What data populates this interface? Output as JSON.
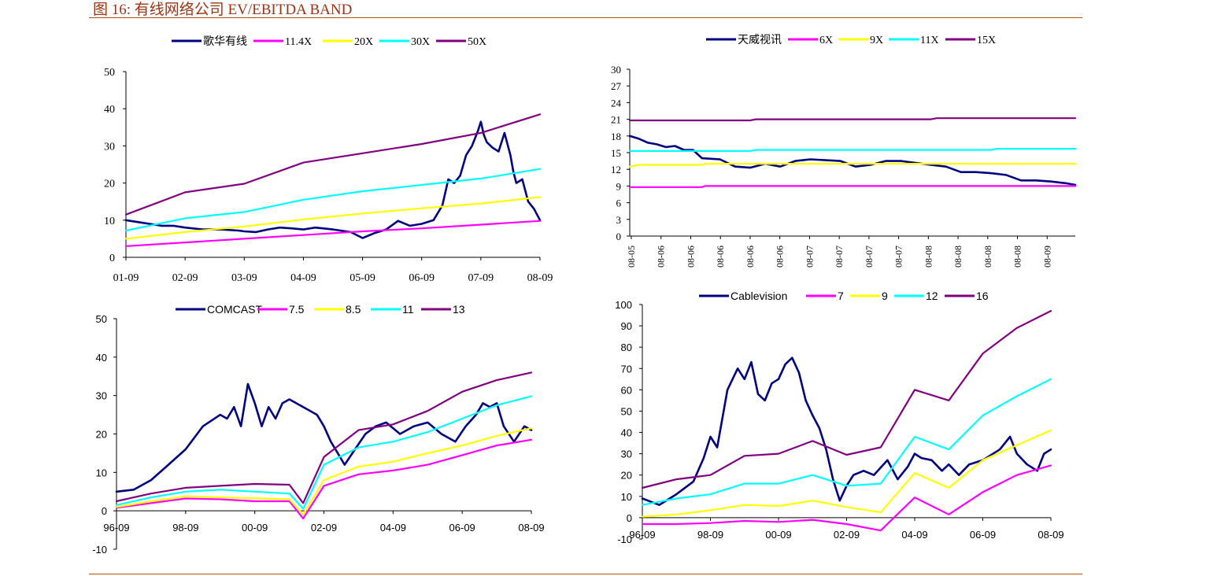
{
  "figure": {
    "title": "图 16:  有线网络公司 EV/EBITDA BAND"
  },
  "colors": {
    "navy": "#000080",
    "magenta": "#ff00ff",
    "yellow": "#ffff00",
    "cyan": "#00ffff",
    "purple": "#800080",
    "rule": "#b45309",
    "title": "#9a3412"
  },
  "chart_data": [
    {
      "id": "chart1",
      "type": "line",
      "title": "",
      "font": "serif",
      "legend": "top-center",
      "x_ticks": [
        "01-09",
        "02-09",
        "03-09",
        "04-09",
        "05-09",
        "06-09",
        "07-09",
        "08-09"
      ],
      "x_range": [
        0,
        7
      ],
      "y_ticks": [
        0,
        10,
        20,
        30,
        40,
        50
      ],
      "ylim": [
        0,
        50
      ],
      "series": [
        {
          "name": "歌华有线",
          "color": "navy",
          "x": [
            0,
            0.2,
            0.4,
            0.6,
            0.8,
            1.0,
            1.3,
            1.6,
            1.9,
            2.0,
            2.2,
            2.4,
            2.6,
            2.8,
            3.0,
            3.2,
            3.5,
            3.8,
            4.0,
            4.2,
            4.4,
            4.6,
            4.8,
            5.0,
            5.2,
            5.35,
            5.45,
            5.55,
            5.65,
            5.75,
            5.85,
            5.95,
            6.0,
            6.05,
            6.1,
            6.2,
            6.3,
            6.4,
            6.5,
            6.55,
            6.6,
            6.7,
            6.8,
            6.9,
            7.0
          ],
          "y": [
            10,
            9.5,
            9,
            8.5,
            8.5,
            8,
            7.5,
            7.5,
            7.2,
            7.0,
            6.8,
            7.5,
            8.0,
            7.8,
            7.5,
            8.0,
            7.5,
            6.8,
            5.2,
            6.5,
            7.5,
            9.8,
            8.5,
            9.0,
            10.0,
            14.0,
            21.0,
            20.0,
            22.0,
            27.5,
            30.0,
            34.0,
            36.5,
            33.0,
            31.0,
            29.5,
            28.5,
            33.5,
            27.5,
            23.0,
            20.0,
            21.0,
            15.0,
            13.0,
            10.0
          ]
        },
        {
          "name": "11.4X",
          "color": "magenta",
          "x": [
            0,
            1,
            2,
            3,
            4,
            5,
            6,
            7
          ],
          "y": [
            3.0,
            4.0,
            5.0,
            6.0,
            7.0,
            7.8,
            8.8,
            9.8
          ]
        },
        {
          "name": "20X",
          "color": "yellow",
          "x": [
            0,
            1,
            2,
            3,
            4,
            5,
            6,
            7
          ],
          "y": [
            5.0,
            6.8,
            8.3,
            10.2,
            11.8,
            13.2,
            14.5,
            16.2
          ]
        },
        {
          "name": "30X",
          "color": "cyan",
          "x": [
            0,
            1,
            2,
            3,
            4,
            5,
            6,
            7
          ],
          "y": [
            7.2,
            10.5,
            12.2,
            15.5,
            17.8,
            19.5,
            21.2,
            23.8
          ]
        },
        {
          "name": "50X",
          "color": "purple",
          "x": [
            0,
            1,
            2,
            3,
            4,
            5,
            6,
            7
          ],
          "y": [
            11.5,
            17.5,
            19.8,
            25.5,
            28.0,
            30.5,
            33.5,
            38.5
          ]
        }
      ]
    },
    {
      "id": "chart2",
      "type": "line",
      "title": "",
      "font": "serif",
      "legend": "top-center",
      "x_ticks": [
        "08-05",
        "08-06",
        "08-06",
        "08-06",
        "08-06",
        "08-06",
        "08-07",
        "08-07",
        "08-07",
        "08-07",
        "08-08",
        "08-08",
        "08-08",
        "08-08",
        "08-09"
      ],
      "x_range": [
        0,
        14.8
      ],
      "y_ticks": [
        0,
        3,
        6,
        9,
        12,
        15,
        18,
        21,
        24,
        27,
        30
      ],
      "ylim": [
        0,
        30
      ],
      "series": [
        {
          "name": "天威视讯",
          "color": "navy",
          "x": [
            0,
            0.3,
            0.6,
            0.9,
            1.2,
            1.5,
            1.8,
            2.1,
            2.4,
            3.0,
            3.5,
            4.0,
            4.5,
            5.0,
            5.5,
            6.0,
            7.0,
            7.5,
            8.0,
            8.5,
            9.0,
            10.0,
            10.5,
            11.0,
            11.5,
            12.0,
            12.5,
            13.0,
            13.5,
            14.0,
            14.5,
            14.8
          ],
          "y": [
            18.0,
            17.5,
            16.8,
            16.5,
            16.0,
            16.2,
            15.5,
            15.5,
            14.0,
            13.8,
            12.5,
            12.3,
            13.0,
            12.5,
            13.5,
            13.8,
            13.5,
            12.5,
            12.8,
            13.5,
            13.5,
            12.8,
            12.5,
            11.5,
            11.5,
            11.3,
            11.0,
            10.0,
            10.0,
            9.8,
            9.5,
            9.2
          ]
        },
        {
          "name": "6X",
          "color": "magenta",
          "x": [
            0,
            2.4,
            2.5,
            14.8
          ],
          "y": [
            8.8,
            8.8,
            9.0,
            9.0
          ]
        },
        {
          "name": "9X",
          "color": "yellow",
          "x": [
            0,
            0.3,
            2.4,
            2.5,
            14.8
          ],
          "y": [
            12.5,
            12.8,
            12.8,
            13.0,
            13.0
          ]
        },
        {
          "name": "11X",
          "color": "cyan",
          "x": [
            0,
            4.0,
            4.2,
            12.0,
            12.2,
            14.8
          ],
          "y": [
            15.3,
            15.3,
            15.5,
            15.5,
            15.7,
            15.7
          ]
        },
        {
          "name": "15X",
          "color": "purple",
          "x": [
            0,
            4.0,
            4.2,
            10.0,
            10.2,
            14.8
          ],
          "y": [
            20.8,
            20.8,
            21.0,
            21.0,
            21.2,
            21.2
          ]
        }
      ]
    },
    {
      "id": "chart3",
      "type": "line",
      "title": "",
      "font": "sans",
      "legend": "top-center",
      "x_ticks": [
        "96-09",
        "98-09",
        "00-09",
        "02-09",
        "04-09",
        "06-09",
        "08-09"
      ],
      "x_range": [
        0,
        12
      ],
      "y_ticks": [
        -10,
        0,
        10,
        20,
        30,
        40,
        50
      ],
      "ylim": [
        -10,
        50
      ],
      "series": [
        {
          "name": "COMCAST",
          "color": "navy",
          "x": [
            0,
            0.5,
            1.0,
            1.5,
            2.0,
            2.5,
            3.0,
            3.2,
            3.4,
            3.6,
            3.8,
            4.0,
            4.2,
            4.4,
            4.6,
            4.8,
            5.0,
            5.4,
            5.8,
            6.0,
            6.2,
            6.4,
            6.6,
            6.9,
            7.2,
            7.5,
            7.8,
            8.2,
            8.6,
            9.0,
            9.4,
            9.8,
            10.1,
            10.4,
            10.6,
            10.8,
            11.0,
            11.2,
            11.5,
            11.8,
            12.0
          ],
          "y": [
            5.0,
            5.5,
            8.0,
            12.0,
            16.0,
            22.0,
            25.0,
            24.0,
            27.0,
            22.0,
            33.0,
            28.0,
            22.0,
            27.0,
            24.0,
            28.0,
            29.0,
            27.0,
            25.0,
            22.0,
            18.0,
            15.0,
            12.0,
            16.0,
            20.0,
            22.0,
            23.0,
            20.0,
            22.0,
            23.0,
            20.0,
            18.0,
            22.0,
            25.0,
            28.0,
            27.0,
            28.0,
            22.0,
            18.0,
            22.0,
            21.0
          ]
        },
        {
          "name": "7.5",
          "color": "magenta",
          "x": [
            0,
            1,
            2,
            3,
            4,
            5,
            5.4,
            6,
            7,
            8,
            9,
            10,
            11,
            12
          ],
          "y": [
            0.8,
            2.0,
            3.2,
            3.0,
            2.5,
            2.5,
            -2.0,
            6.5,
            9.5,
            10.5,
            12.0,
            14.5,
            17.0,
            18.5
          ]
        },
        {
          "name": "8.5",
          "color": "yellow",
          "x": [
            0,
            1,
            2,
            3,
            4,
            5,
            5.4,
            6,
            7,
            8,
            9,
            10,
            11,
            12
          ],
          "y": [
            1.0,
            2.5,
            3.8,
            3.5,
            3.3,
            3.0,
            -1.0,
            8.0,
            11.5,
            12.8,
            15.0,
            17.0,
            19.5,
            21.5
          ]
        },
        {
          "name": "11",
          "color": "cyan",
          "x": [
            0,
            1,
            2,
            3,
            4,
            5,
            5.4,
            6,
            7,
            8,
            9,
            10,
            11,
            12
          ],
          "y": [
            1.5,
            3.5,
            5.0,
            5.5,
            5.0,
            4.5,
            0.5,
            12.0,
            16.5,
            18.0,
            20.5,
            24.0,
            27.5,
            29.8
          ]
        },
        {
          "name": "13",
          "color": "purple",
          "x": [
            0,
            1,
            2,
            3,
            4,
            5,
            5.4,
            6,
            7,
            8,
            9,
            10,
            11,
            12
          ],
          "y": [
            2.5,
            4.5,
            6.0,
            6.5,
            7.0,
            6.8,
            2.0,
            14.0,
            21.0,
            22.5,
            26.0,
            31.0,
            34.0,
            36.0
          ]
        }
      ]
    },
    {
      "id": "chart4",
      "type": "line",
      "title": "",
      "font": "sans",
      "legend": "top-center",
      "x_ticks": [
        "96-09",
        "98-09",
        "00-09",
        "02-09",
        "04-09",
        "06-09",
        "08-09"
      ],
      "x_range": [
        0,
        12
      ],
      "y_ticks": [
        -10,
        0,
        10,
        20,
        30,
        40,
        50,
        60,
        70,
        80,
        90,
        100
      ],
      "ylim": [
        -10,
        100
      ],
      "series": [
        {
          "name": "Cablevision",
          "color": "navy",
          "x": [
            0,
            0.5,
            1.0,
            1.5,
            1.8,
            2.0,
            2.2,
            2.5,
            2.8,
            3.0,
            3.2,
            3.4,
            3.6,
            3.8,
            4.0,
            4.2,
            4.4,
            4.6,
            4.8,
            5.0,
            5.2,
            5.4,
            5.6,
            5.8,
            6.0,
            6.2,
            6.5,
            6.8,
            7.2,
            7.5,
            7.8,
            8.0,
            8.2,
            8.5,
            8.8,
            9.0,
            9.3,
            9.6,
            10.0,
            10.5,
            10.8,
            11.0,
            11.3,
            11.6,
            11.8,
            12.0
          ],
          "y": [
            9.0,
            6.0,
            11.0,
            17.0,
            28.0,
            38.0,
            33.0,
            60.0,
            70.0,
            65.0,
            73.0,
            58.0,
            55.0,
            63.0,
            65.0,
            72.0,
            75.0,
            68.0,
            55.0,
            48.0,
            42.0,
            32.0,
            18.0,
            8.0,
            15.0,
            20.0,
            22.0,
            20.0,
            27.0,
            18.0,
            24.0,
            30.0,
            28.0,
            27.0,
            22.0,
            25.0,
            20.0,
            25.0,
            27.0,
            32.0,
            38.0,
            30.0,
            25.0,
            22.0,
            30.0,
            32.0
          ]
        },
        {
          "name": "7",
          "color": "magenta",
          "x": [
            0,
            1,
            2,
            3,
            4,
            5,
            6,
            7,
            8,
            9,
            10,
            11,
            12
          ],
          "y": [
            -3.0,
            -3.0,
            -2.5,
            -1.5,
            -2.0,
            -1.0,
            -3.0,
            -6.0,
            9.5,
            1.5,
            12.0,
            20.0,
            24.5
          ]
        },
        {
          "name": "9",
          "color": "yellow",
          "x": [
            0,
            1,
            2,
            3,
            4,
            5,
            6,
            7,
            8,
            9,
            10,
            11,
            12
          ],
          "y": [
            0.5,
            1.5,
            3.5,
            6.0,
            5.5,
            8.0,
            5.0,
            2.5,
            21.0,
            14.0,
            27.0,
            34.0,
            41.0
          ]
        },
        {
          "name": "12",
          "color": "cyan",
          "x": [
            0,
            1,
            2,
            3,
            4,
            5,
            6,
            7,
            8,
            9,
            10,
            11,
            12
          ],
          "y": [
            6.0,
            9.0,
            11.0,
            16.0,
            16.0,
            20.0,
            15.0,
            16.0,
            38.0,
            32.0,
            48.0,
            57.0,
            65.0
          ]
        },
        {
          "name": "16",
          "color": "purple",
          "x": [
            0,
            1,
            2,
            3,
            4,
            5,
            6,
            7,
            8,
            9,
            10,
            11,
            12
          ],
          "y": [
            14.0,
            18.0,
            20.0,
            29.0,
            30.0,
            36.0,
            29.5,
            33.0,
            60.0,
            55.0,
            77.0,
            89.0,
            97.0
          ]
        }
      ]
    }
  ]
}
